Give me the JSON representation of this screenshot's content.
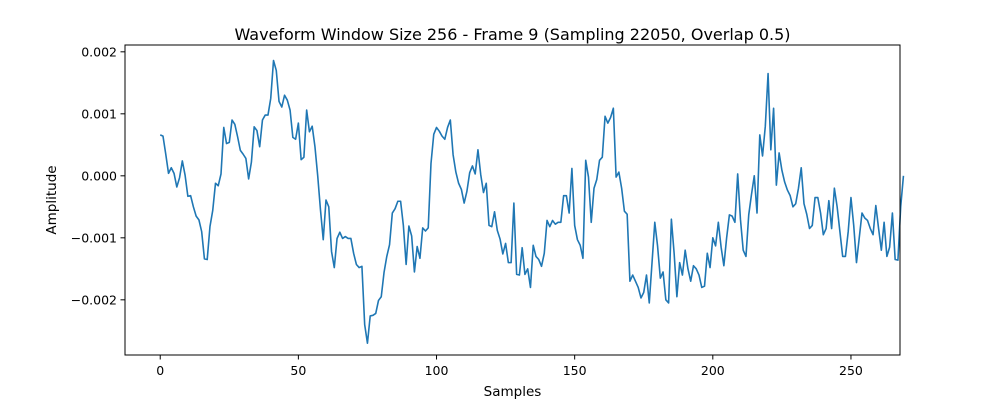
{
  "chart_data": {
    "type": "line",
    "title": "Waveform Window Size 256 - Frame 9 (Sampling 22050, Overlap 0.5)",
    "xlabel": "Samples",
    "ylabel": "Amplitude",
    "xlim": [
      -12.75,
      267.75
    ],
    "ylim": [
      -0.00289,
      0.00211
    ],
    "xticks": [
      0,
      50,
      100,
      150,
      200,
      250
    ],
    "xtick_labels": [
      "0",
      "50",
      "100",
      "150",
      "200",
      "250"
    ],
    "yticks": [
      0.002,
      0.001,
      0.0,
      -0.001,
      -0.002
    ],
    "ytick_labels": [
      "0.002",
      "0.001",
      "0.000",
      "−0.001",
      "−0.002"
    ],
    "grid": false,
    "legend": "none",
    "series_color": "#1f77b4",
    "series": [
      {
        "x_start": 0,
        "x_step": 1,
        "values": [
          0.00066,
          0.00064,
          0.00035,
          4e-05,
          0.00013,
          4e-05,
          -0.00018,
          -3e-05,
          0.00024,
          1e-05,
          -0.00033,
          -0.00032,
          -0.0005,
          -0.00065,
          -0.00071,
          -0.0009,
          -0.00134,
          -0.00135,
          -0.00082,
          -0.00056,
          -0.00012,
          -0.00016,
          3e-05,
          0.00078,
          0.00052,
          0.00054,
          0.0009,
          0.00083,
          0.00063,
          0.00041,
          0.00035,
          0.00028,
          -5e-05,
          0.00022,
          0.00079,
          0.00073,
          0.00047,
          0.0009,
          0.00098,
          0.00098,
          0.00125,
          0.00186,
          0.0017,
          0.0012,
          0.00111,
          0.0013,
          0.00122,
          0.00106,
          0.00062,
          0.00059,
          0.00085,
          0.00026,
          0.0003,
          0.00106,
          0.00071,
          0.0008,
          0.00047,
          0.0,
          -0.00055,
          -0.00103,
          -0.00039,
          -0.0005,
          -0.00122,
          -0.00148,
          -0.00101,
          -0.00091,
          -0.00101,
          -0.00098,
          -0.00101,
          -0.00101,
          -0.00125,
          -0.00143,
          -0.00148,
          -0.00146,
          -0.0024,
          -0.0027,
          -0.00226,
          -0.00225,
          -0.00222,
          -0.00201,
          -0.00195,
          -0.00156,
          -0.0013,
          -0.00111,
          -0.0006,
          -0.00053,
          -0.00041,
          -0.00041,
          -0.0008,
          -0.00143,
          -0.00081,
          -0.00097,
          -0.00155,
          -0.00114,
          -0.00133,
          -0.00084,
          -0.00089,
          -0.00084,
          0.0002,
          0.00067,
          0.00078,
          0.00072,
          0.00064,
          0.00059,
          0.00078,
          0.0009,
          0.00034,
          6e-05,
          -0.00012,
          -0.00022,
          -0.00044,
          -0.00025,
          5e-05,
          0.00016,
          3e-05,
          0.00042,
          2e-05,
          -0.00027,
          -0.00012,
          -0.0008,
          -0.00082,
          -0.00058,
          -0.00088,
          -0.00102,
          -0.00126,
          -0.00109,
          -0.0014,
          -0.0014,
          -0.00044,
          -0.00159,
          -0.0016,
          -0.00116,
          -0.00159,
          -0.0015,
          -0.0018,
          -0.00112,
          -0.0013,
          -0.00135,
          -0.00146,
          -0.00125,
          -0.00072,
          -0.00082,
          -0.00072,
          -0.00078,
          -0.00075,
          -0.00075,
          -0.00032,
          -0.00032,
          -0.0006,
          0.00012,
          -0.0008,
          -0.00103,
          -0.00112,
          -0.00133,
          0.00025,
          -2e-05,
          -0.00075,
          -0.0002,
          -6e-05,
          0.00025,
          0.0003,
          0.00096,
          0.00085,
          0.00094,
          0.00109,
          -2e-05,
          6e-05,
          -0.0002,
          -0.00057,
          -0.00062,
          -0.0017,
          -0.0016,
          -0.0017,
          -0.0018,
          -0.00197,
          -0.00188,
          -0.0016,
          -0.00205,
          -0.0014,
          -0.00075,
          -0.00113,
          -0.00165,
          -0.00155,
          -0.002,
          -0.00205,
          -0.0007,
          -0.00125,
          -0.00195,
          -0.0014,
          -0.0016,
          -0.0012,
          -0.0015,
          -0.0017,
          -0.00145,
          -0.0015,
          -0.0016,
          -0.0018,
          -0.00178,
          -0.00125,
          -0.00148,
          -0.001,
          -0.00113,
          -0.00075,
          -0.00115,
          -0.00145,
          -0.001,
          -0.00063,
          -0.00065,
          -0.00075,
          3e-05,
          -0.0007,
          -0.0012,
          -0.0013,
          -0.00063,
          -0.0003,
          0.0,
          -0.0006,
          0.00066,
          0.00032,
          0.0008,
          0.00165,
          0.00042,
          0.00109,
          -0.00015,
          0.00037,
          9e-05,
          -0.0001,
          -0.00023,
          -0.00032,
          -0.0005,
          -0.00045,
          -0.0002,
          0.00013,
          -0.00045,
          -0.00062,
          -0.00085,
          -0.0008,
          -0.00035,
          -0.00035,
          -0.0006,
          -0.00095,
          -0.00085,
          -0.0004,
          -0.00085,
          -0.0002,
          -0.0005,
          -0.0009,
          -0.0013,
          -0.0013,
          -0.0009,
          -0.00035,
          -0.0008,
          -0.0014,
          -0.001,
          -0.0006,
          -0.00068,
          -0.00072,
          -0.00085,
          -0.00095,
          -0.00048,
          -0.00085,
          -0.0012,
          -0.00075,
          -0.0013,
          -0.00115,
          -0.0006,
          -0.00135,
          -0.00136,
          -0.0005,
          0.0
        ]
      }
    ]
  }
}
